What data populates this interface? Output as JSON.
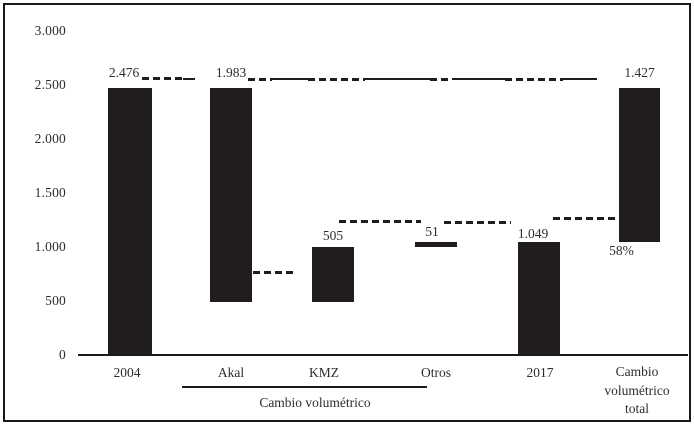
{
  "chart_data": {
    "type": "bar",
    "subtype": "waterfall",
    "title": "",
    "categories": [
      "2004",
      "Akal",
      "KMZ",
      "Otros",
      "2017",
      "Cambio volumétrico total"
    ],
    "bars": [
      {
        "category": "2004",
        "value_label": "2.476",
        "start": 0,
        "end": 2476
      },
      {
        "category": "Akal",
        "value_label": "1.983",
        "start": 493,
        "end": 2476
      },
      {
        "category": "KMZ",
        "value_label": "505",
        "start": 493,
        "end": 998
      },
      {
        "category": "Otros",
        "value_label": "51",
        "start": 998,
        "end": 1049
      },
      {
        "category": "2017",
        "value_label": "1.049",
        "start": 0,
        "end": 1049
      },
      {
        "category": "Cambio volumétrico total",
        "value_label": "1.427",
        "start": 1049,
        "end": 2476,
        "extra_label": "58%"
      }
    ],
    "yticks": [
      {
        "label": "3.000",
        "value": 3000
      },
      {
        "label": "2.500",
        "value": 2500
      },
      {
        "label": "2.000",
        "value": 2000
      },
      {
        "label": "1.500",
        "value": 1500
      },
      {
        "label": "1.000",
        "value": 1000
      },
      {
        "label": "500",
        "value": 500
      },
      {
        "label": "0",
        "value": 0
      }
    ],
    "ylim": [
      0,
      3000
    ],
    "group_label": "Cambio volumétrico",
    "legend": "none",
    "grid": "off",
    "bar_color": "#211d1f",
    "background_color": "#ffffff"
  }
}
